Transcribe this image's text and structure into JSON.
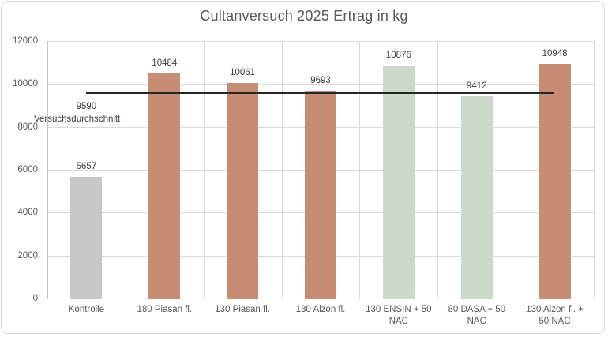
{
  "chart_data": {
    "type": "bar",
    "title": "Cultanversuch 2025 Ertrag in kg",
    "categories": [
      "Kontrolle",
      "180 Piasan fl.",
      "130 Piasan fl.",
      "130 Alzon fl.",
      "130 ENSIN + 50\nNAC",
      "80 DASA + 50\nNAC",
      "130 Alzon fl. +\n50 NAC"
    ],
    "values": [
      5657,
      10484,
      10061,
      9693,
      10876,
      9412,
      10948
    ],
    "data_labels": [
      "5657",
      "10484",
      "10061",
      "9693",
      "10876",
      "9412",
      "10948"
    ],
    "bar_colors": [
      "#c7c7c7",
      "#c78d74",
      "#c78d74",
      "#c78d74",
      "#ccd8cc",
      "#ccd8cc",
      "#c78d74"
    ],
    "average_line": {
      "series_name": "Versuchsdurchschnitt",
      "value": 9590,
      "value_label": "9590",
      "color": "#262626"
    },
    "xlabel": "",
    "ylabel": "",
    "ylim": [
      0,
      12000
    ],
    "yticks": [
      0,
      2000,
      4000,
      6000,
      8000,
      10000,
      12000
    ],
    "ytick_labels": [
      "0",
      "2000",
      "4000",
      "6000",
      "8000",
      "10000",
      "12000"
    ],
    "grid": true,
    "legend": false,
    "colors": {
      "title_text": "#595959",
      "tick_text": "#595959",
      "label_text": "#404040",
      "gridline": "#d9d9d9",
      "frame_border": "#d7d7d7",
      "background": "#ffffff"
    }
  }
}
